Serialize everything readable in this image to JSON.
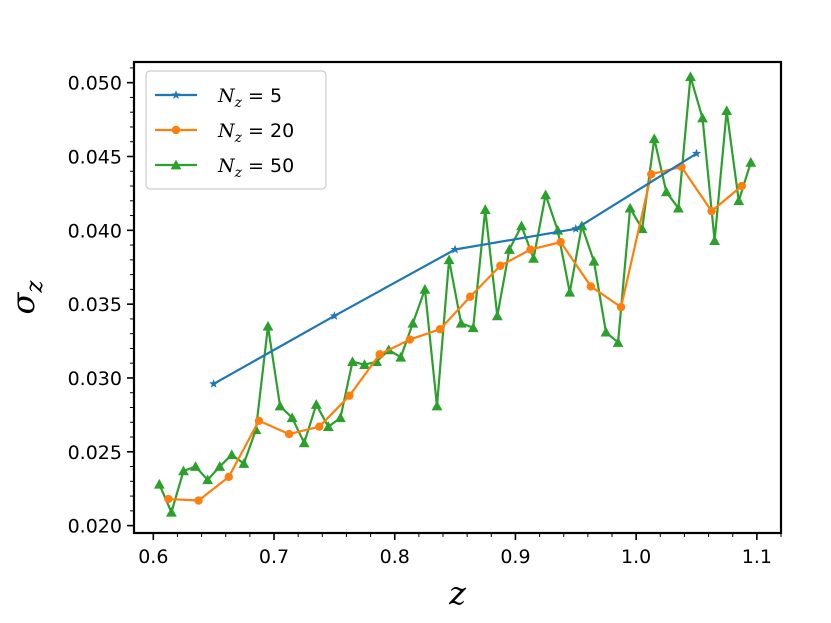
{
  "chart_data": {
    "type": "line",
    "title": "",
    "xlabel": "z",
    "ylabel": "σ_z",
    "xlim": [
      0.584,
      1.12
    ],
    "ylim": [
      0.0195,
      0.0514
    ],
    "x_ticks": [
      0.6,
      0.7,
      0.8,
      0.9,
      1.0,
      1.1
    ],
    "x_tick_labels": [
      "0.6",
      "0.7",
      "0.8",
      "0.9",
      "1.0",
      "1.1"
    ],
    "y_ticks": [
      0.02,
      0.025,
      0.03,
      0.035,
      0.04,
      0.045,
      0.05
    ],
    "y_tick_labels": [
      "0.020",
      "0.025",
      "0.030",
      "0.035",
      "0.040",
      "0.045",
      "0.050"
    ],
    "grid": false,
    "legend_position": "top-left",
    "series": [
      {
        "name": "N_z = 5",
        "legend_main": "N",
        "legend_sub": "z",
        "legend_rest": " = 5",
        "color": "#1f77b4",
        "marker": "star",
        "x": [
          0.65,
          0.75,
          0.85,
          0.95,
          1.05
        ],
        "y": [
          0.0296,
          0.0342,
          0.0387,
          0.0401,
          0.0452
        ]
      },
      {
        "name": "N_z = 20",
        "legend_main": "N",
        "legend_sub": "z",
        "legend_rest": " = 20",
        "color": "#ff7f0e",
        "marker": "circle",
        "x": [
          0.6125,
          0.6375,
          0.6625,
          0.6875,
          0.7125,
          0.7375,
          0.7625,
          0.7875,
          0.8125,
          0.8375,
          0.8625,
          0.8875,
          0.9125,
          0.9375,
          0.9625,
          0.9875,
          1.0125,
          1.0375,
          1.0625,
          1.0875
        ],
        "y": [
          0.0218,
          0.0217,
          0.0233,
          0.0271,
          0.0262,
          0.0267,
          0.0288,
          0.0316,
          0.0326,
          0.0333,
          0.0355,
          0.0376,
          0.0387,
          0.0392,
          0.0362,
          0.0348,
          0.0438,
          0.0443,
          0.0413,
          0.043
        ]
      },
      {
        "name": "N_z = 50",
        "legend_main": "N",
        "legend_sub": "z",
        "legend_rest": " = 50",
        "color": "#2ca02c",
        "marker": "triangle",
        "x": [
          0.605,
          0.615,
          0.625,
          0.635,
          0.645,
          0.655,
          0.665,
          0.675,
          0.685,
          0.695,
          0.705,
          0.715,
          0.725,
          0.735,
          0.745,
          0.755,
          0.765,
          0.775,
          0.785,
          0.795,
          0.805,
          0.815,
          0.825,
          0.835,
          0.845,
          0.855,
          0.865,
          0.875,
          0.885,
          0.895,
          0.905,
          0.915,
          0.925,
          0.935,
          0.945,
          0.955,
          0.965,
          0.975,
          0.985,
          0.995,
          1.005,
          1.015,
          1.025,
          1.035,
          1.045,
          1.055,
          1.065,
          1.075,
          1.085,
          1.095
        ],
        "y": [
          0.0228,
          0.0209,
          0.0237,
          0.024,
          0.0231,
          0.024,
          0.0248,
          0.0242,
          0.0265,
          0.0335,
          0.0281,
          0.0273,
          0.0256,
          0.0282,
          0.0267,
          0.0273,
          0.0311,
          0.0309,
          0.0311,
          0.0319,
          0.0314,
          0.0337,
          0.036,
          0.0281,
          0.038,
          0.0337,
          0.0334,
          0.0414,
          0.0342,
          0.0387,
          0.0403,
          0.0381,
          0.0424,
          0.04,
          0.0358,
          0.0403,
          0.0379,
          0.0331,
          0.0324,
          0.0415,
          0.0401,
          0.0462,
          0.0426,
          0.0415,
          0.0504,
          0.0476,
          0.0393,
          0.0481,
          0.042,
          0.0446
        ]
      }
    ]
  }
}
